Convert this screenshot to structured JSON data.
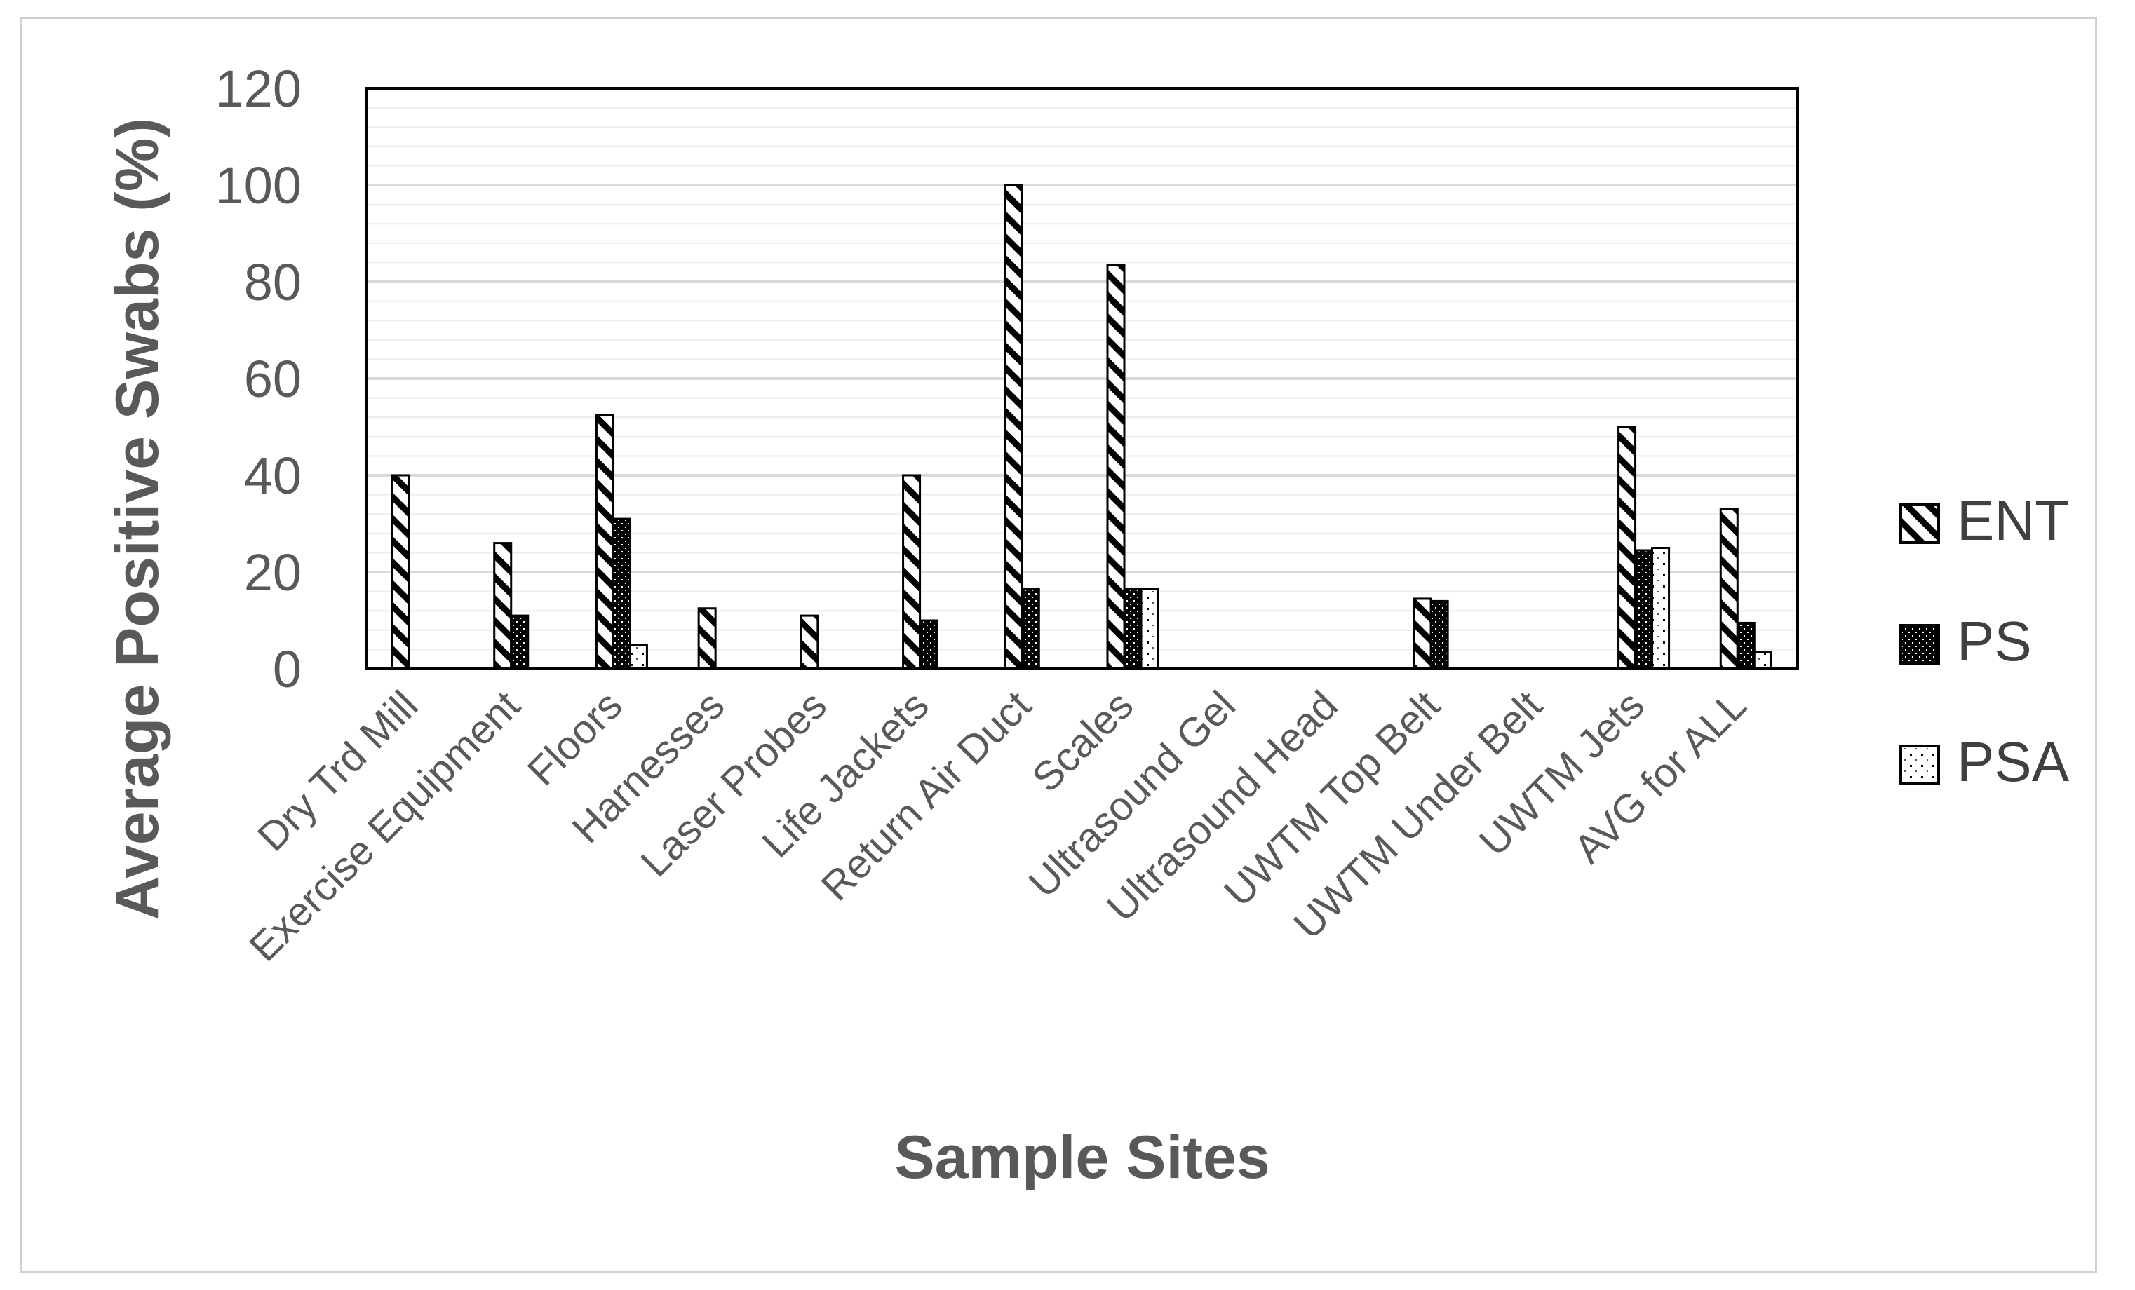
{
  "chart_data": {
    "type": "bar",
    "title": "",
    "xlabel": "Sample Sites",
    "ylabel": "Average Positive Swabs (%)",
    "ylim": [
      0,
      120
    ],
    "y_ticks": [
      "0",
      "20",
      "40",
      "60",
      "80",
      "100",
      "120"
    ],
    "grid": true,
    "legend_position": "right",
    "categories": [
      "Dry Trd Mill",
      "Exercise Equipment",
      "Floors",
      "Harnesses",
      "Laser Probes",
      "Life Jackets",
      "Return Air Duct",
      "Scales",
      "Ultrasound Gel",
      "Ultrasound Head",
      "UWTM Top Belt",
      "UWTM Under Belt",
      "UWTM Jets",
      "AVG for ALL"
    ],
    "series": [
      {
        "name": "ENT",
        "pattern": "diagonal-hatch",
        "values": [
          40,
          26,
          52.5,
          12.5,
          11,
          40,
          100,
          83.5,
          0,
          0,
          14.5,
          0,
          50,
          33
        ]
      },
      {
        "name": "PS",
        "pattern": "dense-dark",
        "values": [
          0,
          11,
          31,
          0,
          0,
          10,
          16.5,
          16.5,
          0,
          0,
          14,
          0,
          24.5,
          9.5
        ]
      },
      {
        "name": "PSA",
        "pattern": "light-dotted",
        "values": [
          0,
          0,
          5,
          0,
          0,
          0,
          0,
          16.5,
          0,
          0,
          0,
          0,
          25,
          3.5
        ]
      }
    ],
    "colors": {
      "stroke": "#000000",
      "grid": "#d9d9d9",
      "minor_grid": "#ececec",
      "text": "#595959"
    }
  }
}
